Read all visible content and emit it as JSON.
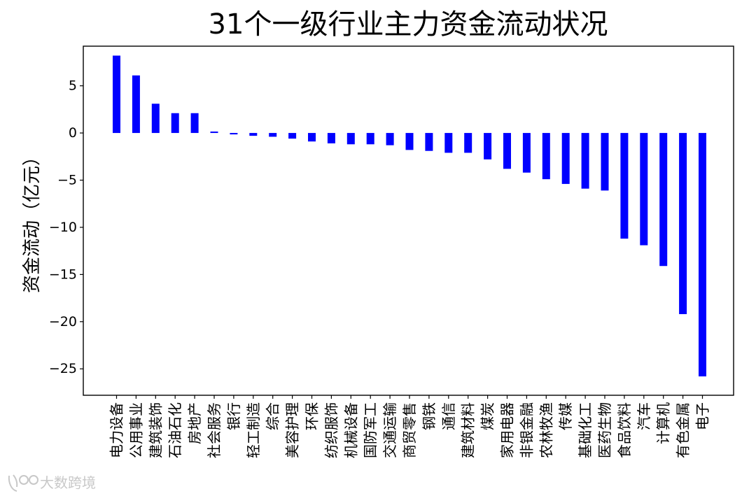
{
  "chart_data": {
    "type": "bar",
    "title": "31个一级行业主力资金流动状况",
    "ylabel": "资金流动（亿元）",
    "xlabel": "",
    "ylim": [
      -27.8,
      9.2
    ],
    "yticks": [
      5,
      0,
      -5,
      -10,
      -15,
      -20,
      -25
    ],
    "ytick_labels": [
      "5",
      "0",
      "−5",
      "−10",
      "−15",
      "−20",
      "−25"
    ],
    "bar_color": "#0000ff",
    "grid": false,
    "categories": [
      "电力设备",
      "公用事业",
      "建筑装饰",
      "石油石化",
      "房地产",
      "社会服务",
      "银行",
      "轻工制造",
      "综合",
      "美容护理",
      "环保",
      "纺织服饰",
      "机械设备",
      "国防军工",
      "交通运输",
      "商贸零售",
      "钢铁",
      "通信",
      "建筑材料",
      "煤炭",
      "家用电器",
      "非银金融",
      "农林牧渔",
      "传媒",
      "基础化工",
      "医药生物",
      "食品饮料",
      "汽车",
      "计算机",
      "有色金属",
      "电子"
    ],
    "values": [
      8.2,
      6.1,
      3.1,
      2.1,
      2.1,
      0.15,
      -0.15,
      -0.3,
      -0.4,
      -0.6,
      -0.9,
      -1.1,
      -1.2,
      -1.2,
      -1.3,
      -1.8,
      -1.9,
      -2.1,
      -2.1,
      -2.8,
      -3.8,
      -4.2,
      -4.9,
      -5.4,
      -5.9,
      -6.1,
      -11.2,
      -11.9,
      -14.1,
      -19.2,
      -25.8
    ]
  },
  "watermark": {
    "logo_icon": "brand-logo-icon",
    "text": "大数跨境"
  }
}
